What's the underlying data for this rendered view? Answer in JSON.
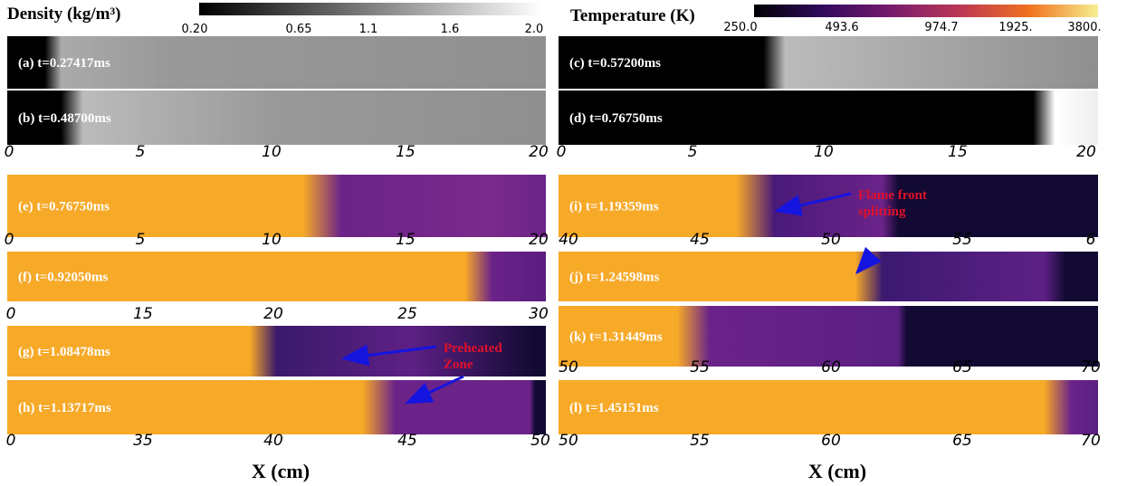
{
  "colorbars": [
    {
      "title": "Density (kg/m³)",
      "ticks": [
        "0.20",
        "0.65",
        "1.1",
        "1.6",
        "2.0"
      ]
    },
    {
      "title": "Temperature (K)",
      "ticks": [
        "250.0",
        "493.6",
        "974.7",
        "1925.",
        "3800."
      ]
    }
  ],
  "panels": [
    {
      "label": "(a) t=0.27417ms"
    },
    {
      "label": "(b) t=0.48700ms"
    },
    {
      "label": "(c) t=0.57200ms"
    },
    {
      "label": "(d) t=0.76750ms"
    },
    {
      "label": "(e) t=0.76750ms"
    },
    {
      "label": "(f) t=0.92050ms"
    },
    {
      "label": "(g) t=1.08478ms"
    },
    {
      "label": "(h) t=1.13717ms"
    },
    {
      "label": "(i) t=1.19359ms"
    },
    {
      "label": "(j) t=1.24598ms"
    },
    {
      "label": "(k) t=1.31449ms"
    },
    {
      "label": "(l) t=1.45151ms"
    }
  ],
  "axes": [
    {
      "ticks": [
        "0",
        "5",
        "10",
        "15",
        "20"
      ]
    },
    {
      "ticks": [
        "0",
        "5",
        "10",
        "15",
        "20"
      ]
    },
    {
      "ticks": [
        "0",
        "5",
        "10",
        "15",
        "20"
      ]
    },
    {
      "ticks": [
        "0",
        "15",
        "20",
        "25",
        "30"
      ]
    },
    {
      "ticks": [
        "0",
        "35",
        "40",
        "45",
        "50"
      ]
    },
    {
      "ticks": [
        "40",
        "45",
        "50",
        "55",
        "6"
      ]
    },
    {
      "ticks": [
        "50",
        "55",
        "60",
        "65",
        "70"
      ]
    },
    {
      "ticks": [
        "50",
        "55",
        "60",
        "65",
        "70"
      ]
    }
  ],
  "annotations": [
    {
      "lines": [
        "Flame front",
        "splitting"
      ]
    },
    {
      "lines": [
        "Preheated",
        "Zone"
      ]
    }
  ],
  "x_labels": [
    "X (cm)",
    "X (cm)"
  ]
}
